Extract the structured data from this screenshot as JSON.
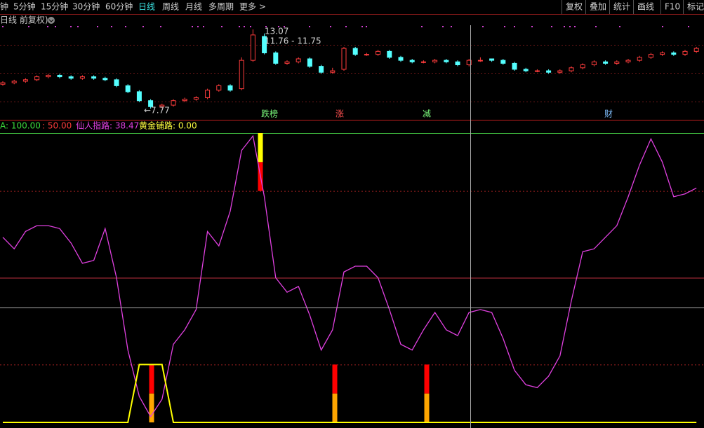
{
  "toolbar": {
    "periods": [
      "钟",
      "5分钟",
      "15分钟",
      "30分钟",
      "60分钟",
      "日线",
      "周线",
      "月线",
      "多周期",
      "更多 >"
    ],
    "active_index": 5,
    "tools": [
      "复权",
      "叠加",
      "统计",
      "画线",
      "F10",
      "标记"
    ]
  },
  "chart_title": "日线 前复权)",
  "price_panel": {
    "type": "candlestick",
    "up_color": "#ff3c3c",
    "down_color": "#54ffff",
    "open": [
      9.4,
      9.5,
      9.6,
      9.7,
      9.9,
      10.0,
      9.9,
      9.8,
      9.9,
      9.8,
      9.7,
      9.3,
      8.9,
      8.3,
      7.9,
      8.0,
      8.3,
      8.4,
      8.5,
      9.0,
      9.3,
      9.1,
      11.0,
      12.6,
      11.5,
      10.8,
      10.9,
      11.1,
      10.6,
      10.2,
      10.4,
      11.8,
      11.4,
      11.4,
      11.6,
      11.2,
      11.0,
      10.9,
      10.9,
      11.0,
      10.9,
      10.7,
      11.0,
      11.1,
      11.0,
      10.8,
      10.4,
      10.3,
      10.3,
      10.2,
      10.3,
      10.5,
      10.7,
      10.9,
      10.8,
      10.9,
      11.0,
      11.2,
      11.4,
      11.5,
      11.4,
      11.6
    ],
    "close": [
      9.5,
      9.6,
      9.7,
      9.9,
      10.0,
      9.9,
      9.8,
      9.9,
      9.8,
      9.7,
      9.3,
      8.9,
      8.3,
      7.9,
      8.0,
      8.3,
      8.4,
      8.5,
      9.0,
      9.3,
      9.0,
      11.0,
      12.7,
      11.5,
      10.8,
      10.9,
      11.1,
      10.6,
      10.2,
      10.3,
      11.8,
      11.4,
      11.4,
      11.6,
      11.2,
      11.0,
      10.9,
      10.9,
      11.0,
      10.9,
      10.7,
      11.0,
      11.0,
      11.0,
      10.8,
      10.4,
      10.3,
      10.3,
      10.2,
      10.3,
      10.5,
      10.7,
      10.9,
      10.8,
      10.9,
      11.0,
      11.2,
      11.4,
      11.5,
      11.4,
      11.6,
      11.8
    ],
    "high": [
      9.6,
      9.7,
      9.8,
      10.0,
      10.1,
      10.1,
      10.0,
      10.0,
      10.0,
      9.9,
      9.8,
      9.4,
      9.0,
      8.4,
      8.1,
      8.4,
      8.5,
      8.6,
      9.1,
      9.4,
      9.4,
      11.2,
      13.07,
      12.8,
      11.6,
      11.0,
      11.2,
      11.2,
      10.7,
      10.5,
      11.9,
      11.9,
      11.5,
      11.7,
      11.7,
      11.3,
      11.1,
      11.0,
      11.1,
      11.1,
      11.0,
      11.1,
      11.2,
      11.1,
      11.1,
      10.9,
      10.5,
      10.4,
      10.4,
      10.4,
      10.6,
      10.8,
      11.0,
      11.0,
      11.0,
      11.1,
      11.3,
      11.5,
      11.6,
      11.6,
      11.7,
      11.9
    ],
    "low": [
      9.3,
      9.4,
      9.5,
      9.6,
      9.8,
      9.8,
      9.7,
      9.7,
      9.7,
      9.6,
      9.2,
      8.8,
      8.2,
      7.77,
      7.8,
      7.9,
      8.2,
      8.3,
      8.4,
      8.9,
      8.9,
      9.0,
      10.9,
      11.4,
      10.7,
      10.7,
      10.8,
      10.5,
      10.1,
      10.1,
      10.3,
      11.3,
      11.3,
      11.3,
      11.1,
      10.9,
      10.8,
      10.8,
      10.8,
      10.8,
      10.6,
      10.6,
      10.9,
      10.9,
      10.7,
      10.3,
      10.2,
      10.2,
      10.1,
      10.1,
      10.2,
      10.4,
      10.6,
      10.7,
      10.7,
      10.8,
      10.9,
      11.1,
      11.3,
      11.3,
      11.3,
      11.5
    ],
    "annotations": [
      {
        "text": "13.07"
      },
      {
        "text": "11.76 - 11.75"
      },
      {
        "text": "←7.77"
      }
    ],
    "events": [
      {
        "text": "跌榜",
        "color": "#7cfc7c"
      },
      {
        "text": "涨",
        "color": "#ff5050"
      },
      {
        "text": "减",
        "color": "#7cfc7c"
      },
      {
        "text": "财",
        "color": "#80c0ff"
      }
    ]
  },
  "indicator_panel": {
    "type": "line",
    "ylim": [
      0,
      100
    ],
    "header": [
      {
        "text": "A: 100.00",
        "color": "#3cdc3c"
      },
      {
        "text": ": 50.00",
        "color": "#ff3c3c"
      },
      {
        "text": "仙人指路: 38.47",
        "color": "#e040e0"
      },
      {
        "text": "黄金铺路: 0.00",
        "color": "#ffff40"
      }
    ],
    "reference_lines": [
      {
        "value": 100,
        "color": "#3cb43c",
        "dashed": false
      },
      {
        "value": 80,
        "color": "#a02020",
        "dashed": true
      },
      {
        "value": 50,
        "color": "#c03040",
        "dashed": false
      },
      {
        "value": 20,
        "color": "#a02020",
        "dashed": true
      }
    ],
    "series": [
      {
        "color": "#e040e0",
        "values": [
          64,
          60,
          66,
          68,
          68,
          67,
          62,
          55,
          56,
          67,
          50,
          25,
          9,
          2,
          8,
          27,
          32,
          39,
          66,
          61,
          73,
          94,
          99,
          78,
          50,
          45,
          47,
          37,
          25,
          32,
          52,
          54,
          54,
          50,
          39,
          27,
          25,
          32,
          38,
          32,
          30,
          38,
          39,
          38,
          29,
          18,
          13,
          12,
          16,
          23,
          42,
          59,
          60,
          64,
          68,
          78,
          89,
          98,
          90,
          78,
          79,
          81
        ]
      },
      {
        "color": "#ffff00",
        "values": [
          0,
          0,
          0,
          0,
          0,
          0,
          0,
          0,
          0,
          0,
          0,
          0,
          20,
          20,
          20,
          0,
          0,
          0,
          0,
          0,
          0,
          0,
          0,
          0,
          0,
          0,
          0,
          0,
          0,
          0,
          0,
          0,
          0,
          0,
          0,
          0,
          0,
          0,
          0,
          0,
          0,
          0,
          0,
          0,
          0,
          0,
          0,
          0,
          0,
          0,
          0,
          0,
          0,
          0,
          0,
          0,
          0,
          0,
          0,
          0,
          0,
          0
        ]
      }
    ],
    "signals": [
      {
        "segments": [
          {
            "from": 0,
            "to": 10,
            "color": "#ffa500"
          },
          {
            "from": 10,
            "to": 20,
            "color": "#ff0000"
          }
        ]
      },
      {
        "segments": [
          {
            "from": 80,
            "to": 90,
            "color": "#ff0000"
          },
          {
            "from": 90,
            "to": 100,
            "color": "#ffff00"
          }
        ]
      },
      {
        "segments": [
          {
            "from": 0,
            "to": 10,
            "color": "#ffa500"
          },
          {
            "from": 10,
            "to": 20,
            "color": "#ff0000"
          }
        ]
      },
      {
        "segments": [
          {
            "from": 0,
            "to": 10,
            "color": "#ffa500"
          },
          {
            "from": 10,
            "to": 20,
            "color": "#ff0000"
          }
        ]
      }
    ]
  }
}
